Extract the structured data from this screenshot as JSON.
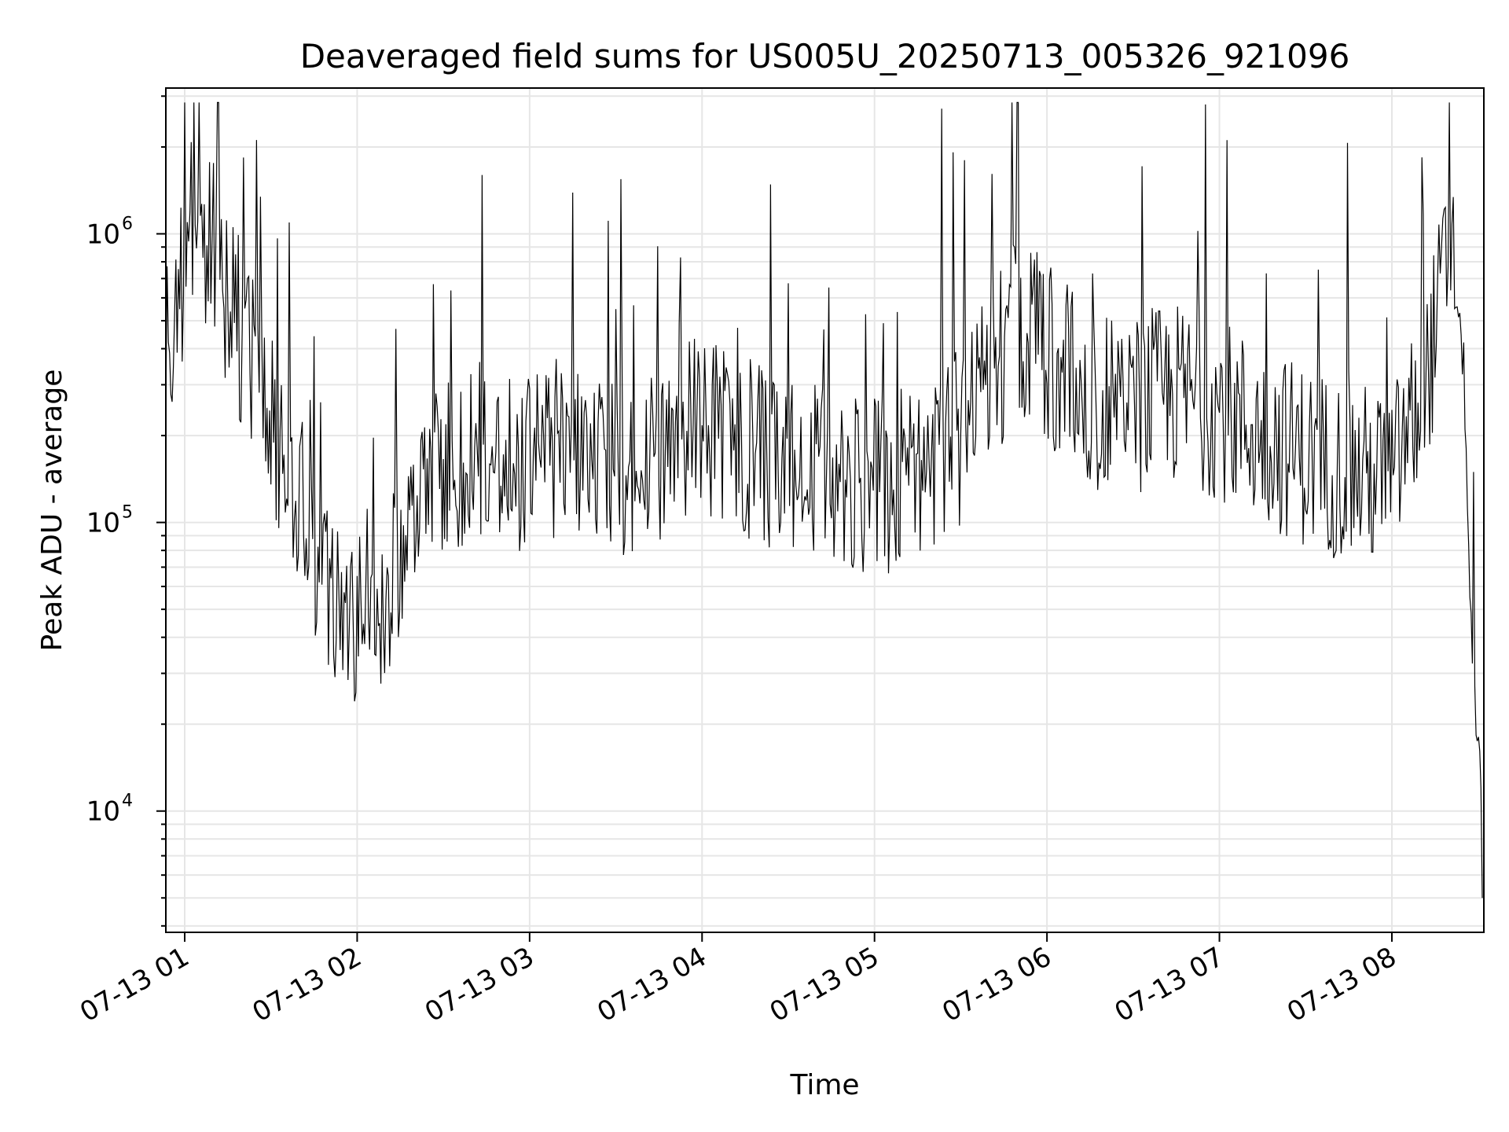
{
  "chart_data": {
    "type": "line",
    "title": "Deaveraged field sums for US005U_20250713_005326_921096",
    "xlabel": "Time",
    "ylabel": "Peak ADU - average",
    "y_scale": "log",
    "ylim": [
      3800,
      3200000
    ],
    "xlim": [
      "2025-07-13T00:53:26",
      "2025-07-13T08:32:00"
    ],
    "grid": true,
    "line_color": "#000000",
    "grid_color": "#e6e6e6",
    "x_ticks": [
      {
        "t": "2025-07-13T01:00:00",
        "label": "07-13 01"
      },
      {
        "t": "2025-07-13T02:00:00",
        "label": "07-13 02"
      },
      {
        "t": "2025-07-13T03:00:00",
        "label": "07-13 03"
      },
      {
        "t": "2025-07-13T04:00:00",
        "label": "07-13 04"
      },
      {
        "t": "2025-07-13T05:00:00",
        "label": "07-13 05"
      },
      {
        "t": "2025-07-13T06:00:00",
        "label": "07-13 06"
      },
      {
        "t": "2025-07-13T07:00:00",
        "label": "07-13 07"
      },
      {
        "t": "2025-07-13T08:00:00",
        "label": "07-13 08"
      }
    ],
    "y_ticks": [
      {
        "value": 10000,
        "base": "10",
        "exp": "4"
      },
      {
        "value": 100000,
        "base": "10",
        "exp": "5"
      },
      {
        "value": 1000000,
        "base": "10",
        "exp": "6"
      }
    ],
    "series": [
      {
        "x": [
          "2025-07-13T00:53:26",
          "2025-07-13T01:00:00",
          "2025-07-13T01:05:00",
          "2025-07-13T01:10:00",
          "2025-07-13T01:15:00",
          "2025-07-13T01:20:00",
          "2025-07-13T01:25:00",
          "2025-07-13T01:30:00",
          "2025-07-13T01:35:00",
          "2025-07-13T01:40:00",
          "2025-07-13T01:45:00",
          "2025-07-13T01:50:00",
          "2025-07-13T01:55:00",
          "2025-07-13T02:00:00",
          "2025-07-13T02:10:00",
          "2025-07-13T02:20:00",
          "2025-07-13T02:30:00",
          "2025-07-13T02:40:00",
          "2025-07-13T02:50:00",
          "2025-07-13T03:00:00",
          "2025-07-13T03:15:00",
          "2025-07-13T03:30:00",
          "2025-07-13T03:45:00",
          "2025-07-13T04:00:00",
          "2025-07-13T04:15:00",
          "2025-07-13T04:30:00",
          "2025-07-13T04:45:00",
          "2025-07-13T05:00:00",
          "2025-07-13T05:15:00",
          "2025-07-13T05:30:00",
          "2025-07-13T05:40:00",
          "2025-07-13T05:50:00",
          "2025-07-13T06:00:00",
          "2025-07-13T06:15:00",
          "2025-07-13T06:30:00",
          "2025-07-13T06:45:00",
          "2025-07-13T07:00:00",
          "2025-07-13T07:15:00",
          "2025-07-13T07:30:00",
          "2025-07-13T07:45:00",
          "2025-07-13T08:00:00",
          "2025-07-13T08:05:00",
          "2025-07-13T08:10:00",
          "2025-07-13T08:15:00",
          "2025-07-13T08:20:00",
          "2025-07-13T08:25:00",
          "2025-07-13T08:28:00",
          "2025-07-13T08:31:00"
        ],
        "y": [
          480000,
          650000,
          600000,
          1000000,
          600000,
          450000,
          300000,
          220000,
          180000,
          130000,
          80000,
          55000,
          50000,
          45000,
          60000,
          100000,
          140000,
          180000,
          160000,
          170000,
          160000,
          150000,
          180000,
          220000,
          180000,
          150000,
          140000,
          130000,
          160000,
          200000,
          300000,
          500000,
          400000,
          250000,
          260000,
          280000,
          250000,
          200000,
          170000,
          150000,
          140000,
          200000,
          250000,
          450000,
          900000,
          350000,
          30000,
          12000
        ]
      }
    ]
  }
}
